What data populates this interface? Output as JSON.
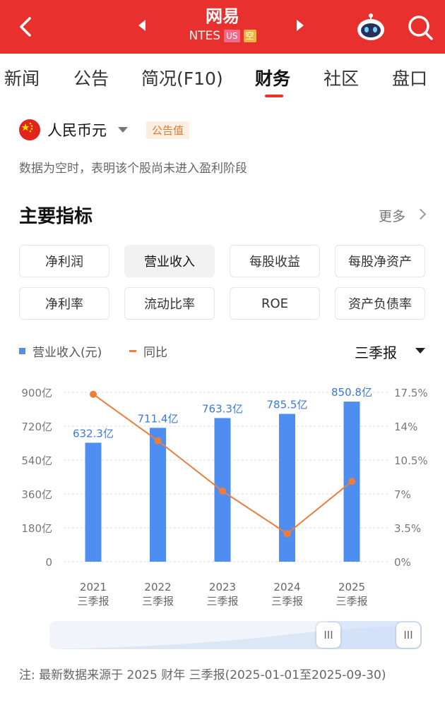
{
  "header": {
    "title": "网易",
    "ticker": "NTES",
    "market_badge": "US",
    "extra_badge": "空"
  },
  "tabs": [
    "新闻",
    "公告",
    "简况(F10)",
    "财务",
    "社区",
    "盘口"
  ],
  "active_tab": "财务",
  "currency": {
    "label": "人民币元",
    "badge": "公告值"
  },
  "notice": "数据为空时，表明该个股尚未进入盈利阶段",
  "section": {
    "title": "主要指标",
    "more": "更多"
  },
  "metrics": [
    "净利润",
    "营业收入",
    "每股收益",
    "每股净资产",
    "净利率",
    "流动比率",
    "ROE",
    "资产负债率"
  ],
  "selected_metric": "营业收入",
  "legend": {
    "bar": "营业收入(元)",
    "line": "同比"
  },
  "period_selector": "三季报",
  "chart_data": {
    "type": "bar",
    "categories": [
      "2021\n三季报",
      "2022\n三季报",
      "2023\n三季报",
      "2024\n三季报",
      "2025\n三季报"
    ],
    "category_years": [
      "2021",
      "2022",
      "2023",
      "2024",
      "2025"
    ],
    "category_period": "三季报",
    "series": [
      {
        "name": "营业收入(元)",
        "type": "bar",
        "values": [
          632.3,
          711.4,
          763.3,
          785.5,
          850.8
        ],
        "labels": [
          "632.3亿",
          "711.4亿",
          "763.3亿",
          "785.5亿",
          "850.8亿"
        ]
      },
      {
        "name": "同比",
        "type": "line",
        "values": [
          17.3,
          12.5,
          7.3,
          2.9,
          8.3
        ]
      }
    ],
    "y_left": {
      "ticks": [
        "0",
        "180亿",
        "360亿",
        "540亿",
        "720亿",
        "900亿"
      ],
      "range": [
        0,
        900
      ],
      "unit": "亿"
    },
    "y_right": {
      "ticks": [
        "0%",
        "3.5%",
        "7%",
        "10.5%",
        "14%",
        "17.5%"
      ],
      "range": [
        0,
        17.5
      ],
      "unit": "%"
    },
    "colors": {
      "bar": "#4e8ef0",
      "line": "#ee7d3b",
      "label": "#3c78d8"
    }
  },
  "slider": {
    "handle_left": "III",
    "handle_right": "III"
  },
  "footnote": "注: 最新数据来源于 2025 财年 三季报(2025-01-01至2025-09-30)"
}
